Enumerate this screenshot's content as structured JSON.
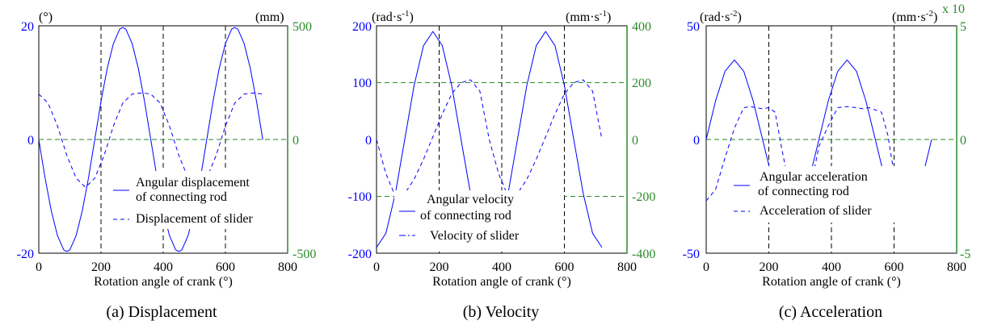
{
  "figure": {
    "captions": [
      "(a) Displacement",
      "(b) Velocity",
      "(c) Acceleration"
    ]
  },
  "colors": {
    "primary_series": "#0000ff",
    "secondary_axis": "#2a8a2a",
    "grid_vertical": "#000000",
    "grid_horizontal": "#2a8a2a"
  },
  "chart_data": [
    {
      "type": "line",
      "xlabel": "Rotation angle of crank (°)",
      "xlim": [
        0,
        800
      ],
      "xticks": [
        "0",
        "200",
        "400",
        "600",
        "800"
      ],
      "y_left_unit": "(°)",
      "y_right_unit": "(mm)",
      "ylim_left": [
        -20,
        20
      ],
      "ylim_right": [
        -500,
        500
      ],
      "yticks_left": [
        "20",
        "0",
        "-20"
      ],
      "yticks_right": [
        "500",
        "0",
        "-500"
      ],
      "grid_x": [
        200,
        400,
        600
      ],
      "grid_y_right": [
        0
      ],
      "legend": "bottom-right",
      "series": [
        {
          "name": "Angular displacement of connecting rod",
          "axis": "left",
          "style": "solid",
          "x": [
            0,
            20,
            40,
            60,
            80,
            90,
            100,
            120,
            140,
            160,
            180,
            200,
            220,
            240,
            260,
            270,
            280,
            300,
            320,
            340,
            360,
            380,
            400,
            420,
            440,
            450,
            460,
            480,
            500,
            520,
            540,
            560,
            580,
            600,
            620,
            630,
            640,
            660,
            680,
            700,
            720
          ],
          "y": [
            0,
            -6.7,
            -12.5,
            -16.9,
            -19.4,
            -19.7,
            -19.4,
            -16.9,
            -12.5,
            -6.7,
            0,
            6.7,
            12.5,
            16.9,
            19.4,
            19.7,
            19.4,
            16.9,
            12.5,
            6.7,
            0,
            -6.7,
            -12.5,
            -16.9,
            -19.4,
            -19.7,
            -19.4,
            -16.9,
            -12.5,
            -6.7,
            0,
            6.7,
            12.5,
            16.9,
            19.4,
            19.7,
            19.4,
            16.9,
            12.5,
            6.7,
            0
          ]
        },
        {
          "name": "Displacement of slider",
          "axis": "right",
          "style": "dashed",
          "x": [
            0,
            30,
            60,
            90,
            120,
            150,
            180,
            210,
            240,
            270,
            300,
            330,
            360,
            390,
            420,
            450,
            480,
            510,
            540,
            570,
            600,
            630,
            660,
            690,
            720
          ],
          "y": [
            200,
            160,
            60,
            -70,
            -170,
            -210,
            -170,
            -70,
            60,
            160,
            200,
            205,
            200,
            160,
            60,
            -70,
            -170,
            -210,
            -170,
            -70,
            60,
            160,
            200,
            205,
            200
          ]
        }
      ]
    },
    {
      "type": "line",
      "xlabel": "Rotation angle of crank (°)",
      "xlim": [
        0,
        800
      ],
      "xticks": [
        "0",
        "200",
        "400",
        "600",
        "800"
      ],
      "y_left_unit": "(rad·s-1)",
      "y_right_unit": "(mm·s-1)",
      "ylim_left": [
        -200,
        200
      ],
      "ylim_right": [
        -400,
        400
      ],
      "yticks_left": [
        "200",
        "100",
        "0",
        "-100",
        "-200"
      ],
      "yticks_right": [
        "400",
        "200",
        "0",
        "-200",
        "-400"
      ],
      "grid_x": [
        200,
        400,
        600
      ],
      "grid_y_right": [
        200,
        -200
      ],
      "legend": "bottom-center",
      "series": [
        {
          "name": "Angular velocity of connecting rod",
          "axis": "left",
          "style": "solid",
          "x": [
            0,
            30,
            60,
            90,
            120,
            150,
            180,
            210,
            240,
            270,
            300,
            330,
            360,
            390,
            420,
            450,
            480,
            510,
            540,
            570,
            600,
            630,
            660,
            690,
            720
          ],
          "y": [
            -190,
            -165,
            -95,
            0,
            95,
            165,
            190,
            165,
            95,
            0,
            -95,
            -165,
            -190,
            -165,
            -95,
            0,
            95,
            165,
            190,
            165,
            95,
            0,
            -95,
            -165,
            -190
          ]
        },
        {
          "name": "Velocity of slider",
          "axis": "right",
          "style": "dashed",
          "x": [
            0,
            30,
            60,
            90,
            120,
            150,
            180,
            210,
            240,
            270,
            300,
            330,
            360,
            390,
            420,
            450,
            480,
            510,
            540,
            570,
            600,
            630,
            660,
            690,
            720
          ],
          "y": [
            0,
            -120,
            -200,
            -190,
            -140,
            -70,
            10,
            90,
            160,
            200,
            210,
            170,
            0,
            -120,
            -200,
            -190,
            -140,
            -70,
            10,
            90,
            160,
            200,
            210,
            170,
            0
          ]
        }
      ]
    },
    {
      "type": "line",
      "xlabel": "Rotation angle of crank (°)",
      "xlim": [
        0,
        800
      ],
      "xticks": [
        "0",
        "200",
        "400",
        "600",
        "800"
      ],
      "y_left_unit": "(rad·s-2)",
      "y_right_unit": "(mm·s-2)",
      "y_right_multiplier": "x 10",
      "ylim_left": [
        -50,
        50
      ],
      "ylim_right": [
        -5,
        5
      ],
      "yticks_left": [
        "50",
        "0",
        "-50"
      ],
      "yticks_right": [
        "5",
        "0",
        "-5"
      ],
      "grid_x": [
        200,
        400,
        600
      ],
      "grid_y_right": [
        0
      ],
      "legend": "bottom-right",
      "series": [
        {
          "name": "Angular acceleration of connecting rod",
          "axis": "left",
          "style": "solid",
          "x": [
            0,
            30,
            60,
            90,
            120,
            150,
            180,
            210,
            240,
            270,
            300,
            330,
            360,
            390,
            420,
            450,
            480,
            510,
            540,
            570,
            600,
            630,
            660,
            690,
            720
          ],
          "y": [
            0,
            17,
            30,
            35,
            30,
            17,
            0,
            -17,
            -30,
            -35,
            -30,
            -17,
            0,
            17,
            30,
            35,
            30,
            17,
            0,
            -17,
            -30,
            -35,
            -30,
            -17,
            0
          ]
        },
        {
          "name": "Acceleration of slider",
          "axis": "right",
          "style": "dashed",
          "x": [
            0,
            30,
            60,
            90,
            120,
            140,
            160,
            180,
            200,
            220,
            240,
            270,
            300,
            330,
            360,
            390,
            420,
            450,
            480,
            500,
            520,
            540,
            560,
            580,
            600,
            630,
            660,
            690,
            720
          ],
          "y": [
            -2.7,
            -2.2,
            -0.8,
            0.5,
            1.4,
            1.45,
            1.4,
            1.35,
            1.4,
            1.2,
            -0.3,
            -2.4,
            -3.5,
            -2.4,
            -0.3,
            0.6,
            1.4,
            1.45,
            1.4,
            1.35,
            1.4,
            1.3,
            1.2,
            0.2,
            -1.5,
            -2.9,
            -3.5,
            -2.4,
            -2.7
          ]
        }
      ]
    }
  ]
}
